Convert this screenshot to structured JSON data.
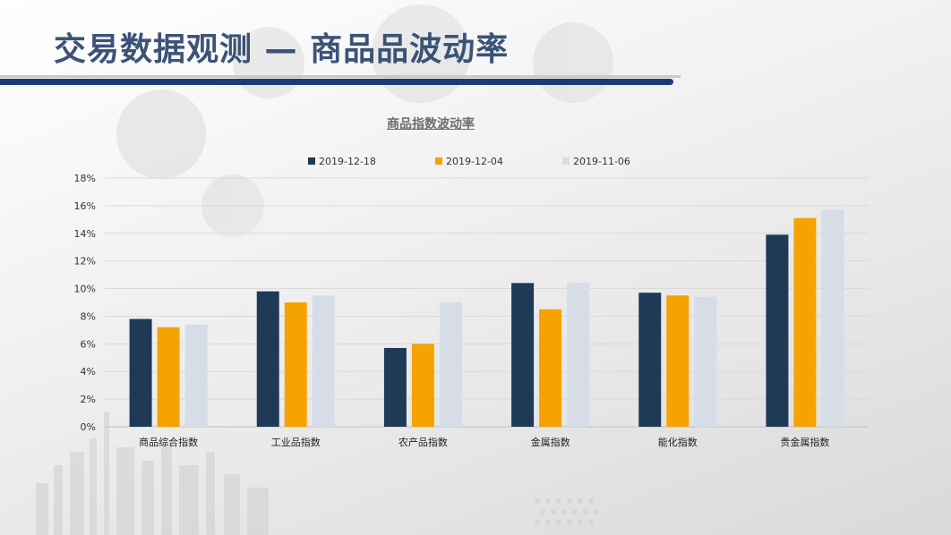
{
  "slide": {
    "title": "交易数据观测 — 商品品波动率"
  },
  "colors": {
    "title": "#3c5377",
    "accent_bar": "#1f3a78",
    "series_1": "#1f3a57",
    "series_2": "#f5a300",
    "series_3": "#d6dde6"
  },
  "chart_data": {
    "type": "bar",
    "title": "商品指数波动率",
    "categories": [
      "商品综合指数",
      "工业品指数",
      "农产品指数",
      "金属指数",
      "能化指数",
      "贵金属指数"
    ],
    "series": [
      {
        "name": "2019-12-18",
        "color": "#1f3a57",
        "values": [
          7.8,
          9.8,
          5.7,
          10.4,
          9.7,
          13.9
        ]
      },
      {
        "name": "2019-12-04",
        "color": "#f5a300",
        "values": [
          7.2,
          9.0,
          6.0,
          8.5,
          9.5,
          15.1
        ]
      },
      {
        "name": "2019-11-06",
        "color": "#d6dde6",
        "values": [
          7.4,
          9.5,
          9.0,
          10.4,
          9.4,
          15.7
        ]
      }
    ],
    "ylim": [
      0,
      18
    ],
    "yticks": [
      "0%",
      "2%",
      "4%",
      "6%",
      "8%",
      "10%",
      "12%",
      "14%",
      "16%",
      "18%"
    ],
    "grid": true,
    "legend_position": "top"
  }
}
